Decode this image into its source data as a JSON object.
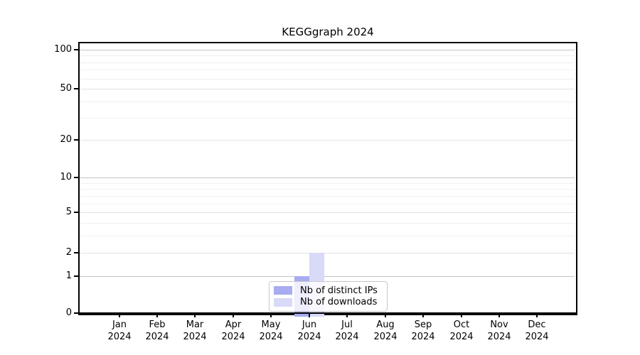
{
  "title": "KEGGgraph 2024",
  "colors": {
    "distinct_ips": "#a8acf0",
    "downloads": "#d9daf7",
    "grid_decade": "#c3c3c3",
    "grid_labeled": "#e2e2e2",
    "grid_minor": "#efefef",
    "axis": "#000000",
    "legend_border": "#c8c8c8",
    "background": "#ffffff"
  },
  "legend": {
    "items": [
      {
        "label": "Nb of distinct IPs",
        "series": "distinct_ips"
      },
      {
        "label": "Nb of downloads",
        "series": "downloads"
      }
    ]
  },
  "chart_data": {
    "type": "bar",
    "title": "KEGGgraph 2024",
    "categories": [
      {
        "month": "Jan",
        "year": "2024"
      },
      {
        "month": "Feb",
        "year": "2024"
      },
      {
        "month": "Mar",
        "year": "2024"
      },
      {
        "month": "Apr",
        "year": "2024"
      },
      {
        "month": "May",
        "year": "2024"
      },
      {
        "month": "Jun",
        "year": "2024"
      },
      {
        "month": "Jul",
        "year": "2024"
      },
      {
        "month": "Aug",
        "year": "2024"
      },
      {
        "month": "Sep",
        "year": "2024"
      },
      {
        "month": "Oct",
        "year": "2024"
      },
      {
        "month": "Nov",
        "year": "2024"
      },
      {
        "month": "Dec",
        "year": "2024"
      }
    ],
    "series": [
      {
        "name": "Nb of distinct IPs",
        "color": "#a8acf0",
        "values": [
          0,
          0,
          0,
          0,
          0,
          1,
          0,
          0,
          0,
          0,
          0,
          0
        ]
      },
      {
        "name": "Nb of downloads",
        "color": "#d9daf7",
        "values": [
          0,
          0,
          0,
          0,
          0,
          2,
          0,
          0,
          0,
          0,
          0,
          0
        ]
      }
    ],
    "xlabel": "",
    "ylabel": "",
    "y_axis": {
      "scale": "log1p",
      "tick_values": [
        0,
        1,
        2,
        5,
        10,
        20,
        50,
        100
      ],
      "tick_labels": [
        "0",
        "1",
        "2",
        "5",
        "10",
        "20",
        "50",
        "100"
      ],
      "decade_gridlines": [
        1,
        10,
        100
      ],
      "minor_gridlines": [
        3,
        4,
        6,
        7,
        8,
        9,
        30,
        40,
        60,
        70,
        80,
        90
      ],
      "range": [
        0,
        100
      ]
    },
    "grid": true,
    "legend_position": "inside-bottom-center"
  }
}
